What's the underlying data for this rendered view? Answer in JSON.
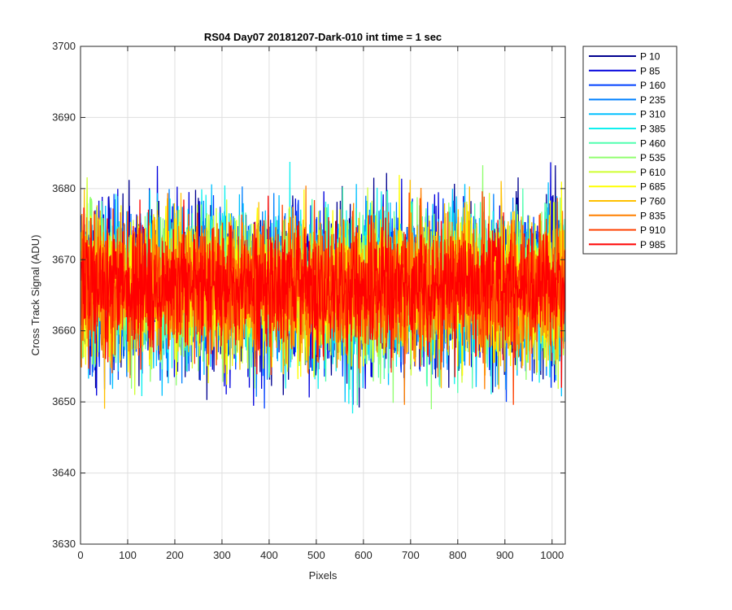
{
  "chart_data": {
    "type": "line",
    "title": "RS04 Day07 20181207-Dark-010 int time = 1 sec",
    "xlabel": "Pixels",
    "ylabel": "Cross Track Signal (ADU)",
    "xlim": [
      0,
      1028
    ],
    "ylim": [
      3630,
      3700
    ],
    "xticks": [
      "0",
      "100",
      "200",
      "300",
      "400",
      "500",
      "600",
      "700",
      "800",
      "900",
      "1000"
    ],
    "yticks": [
      "3630",
      "3640",
      "3650",
      "3660",
      "3670",
      "3680",
      "3690",
      "3700"
    ],
    "grid": true,
    "legend_position": "outside-top-right",
    "n_points": 1028,
    "mean_signal": 3666,
    "series": [
      {
        "name": "P 10",
        "color": "#00008f",
        "spread": 9.0,
        "seed": 11
      },
      {
        "name": "P 85",
        "color": "#0000dd",
        "spread": 9.0,
        "seed": 23
      },
      {
        "name": "P 160",
        "color": "#0040ff",
        "spread": 8.8,
        "seed": 37
      },
      {
        "name": "P 235",
        "color": "#0080ff",
        "spread": 8.6,
        "seed": 41
      },
      {
        "name": "P 310",
        "color": "#00c0ff",
        "spread": 8.6,
        "seed": 53
      },
      {
        "name": "P 385",
        "color": "#10f0ef",
        "spread": 8.4,
        "seed": 67
      },
      {
        "name": "P 460",
        "color": "#50ffaf",
        "spread": 8.4,
        "seed": 71
      },
      {
        "name": "P 535",
        "color": "#90ff6f",
        "spread": 8.2,
        "seed": 83
      },
      {
        "name": "P 610",
        "color": "#cfff30",
        "spread": 8.2,
        "seed": 97
      },
      {
        "name": "P 685",
        "color": "#ffff00",
        "spread": 8.0,
        "seed": 101
      },
      {
        "name": "P 760",
        "color": "#ffc000",
        "spread": 7.8,
        "seed": 113
      },
      {
        "name": "P 835",
        "color": "#ff8000",
        "spread": 7.6,
        "seed": 127
      },
      {
        "name": "P 910",
        "color": "#ff4000",
        "spread": 7.4,
        "seed": 131
      },
      {
        "name": "P 985",
        "color": "#ff0000",
        "spread": 7.0,
        "seed": 149
      }
    ]
  }
}
